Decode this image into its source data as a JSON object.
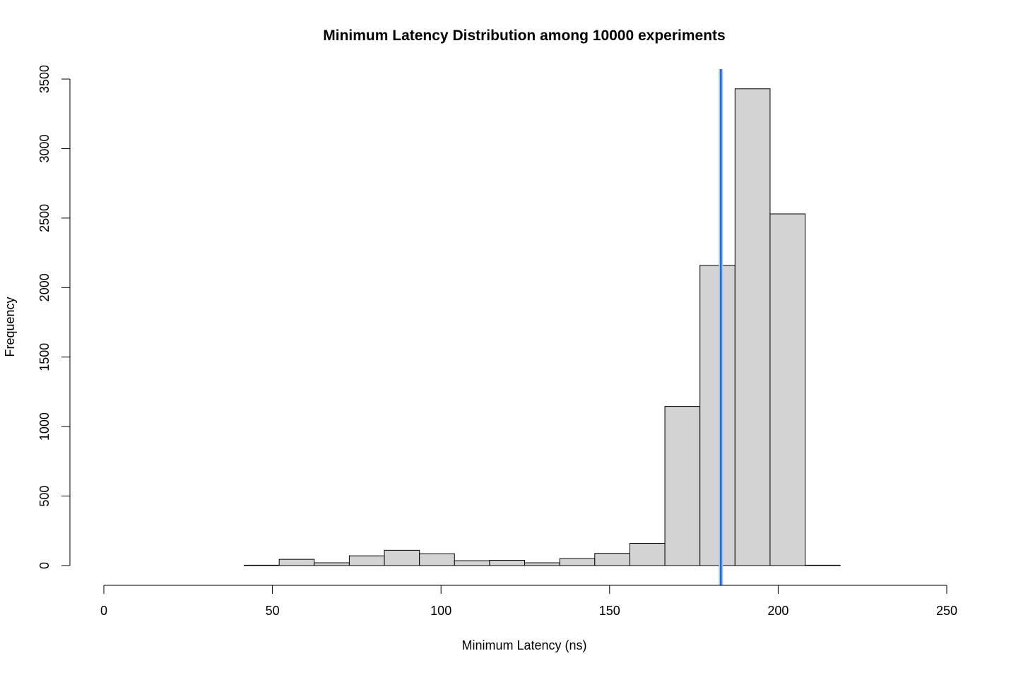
{
  "chart_data": {
    "type": "bar",
    "subtype": "histogram",
    "title": "Minimum Latency Distribution among 10000 experiments",
    "xlabel": "Minimum Latency (ns)",
    "ylabel": "Frequency",
    "xlim": [
      0,
      250
    ],
    "ylim": [
      0,
      3500
    ],
    "x_ticks": [
      "0",
      "50",
      "100",
      "150",
      "200",
      "250"
    ],
    "y_ticks": [
      "0",
      "500",
      "1000",
      "1500",
      "2000",
      "2500",
      "3000",
      "3500"
    ],
    "bin_edges": [
      0,
      10.4,
      20.8,
      31.2,
      41.6,
      52,
      62.4,
      72.8,
      83.2,
      93.6,
      104,
      114.4,
      124.8,
      135.2,
      145.6,
      156,
      166.4,
      176.8,
      187.2,
      197.6,
      208,
      218.4,
      228.8,
      239.2,
      249.6
    ],
    "values": [
      0,
      0,
      0,
      0,
      3,
      45,
      20,
      70,
      110,
      85,
      35,
      38,
      20,
      50,
      88,
      160,
      1145,
      2160,
      3430,
      2530,
      3,
      0,
      0,
      0
    ],
    "bar_color": "#d3d3d3",
    "edge_color": "#000000",
    "reference_line": {
      "x": 183,
      "color": "#1e66e6",
      "halo_color": "#9ec8ff"
    },
    "grid": false
  }
}
